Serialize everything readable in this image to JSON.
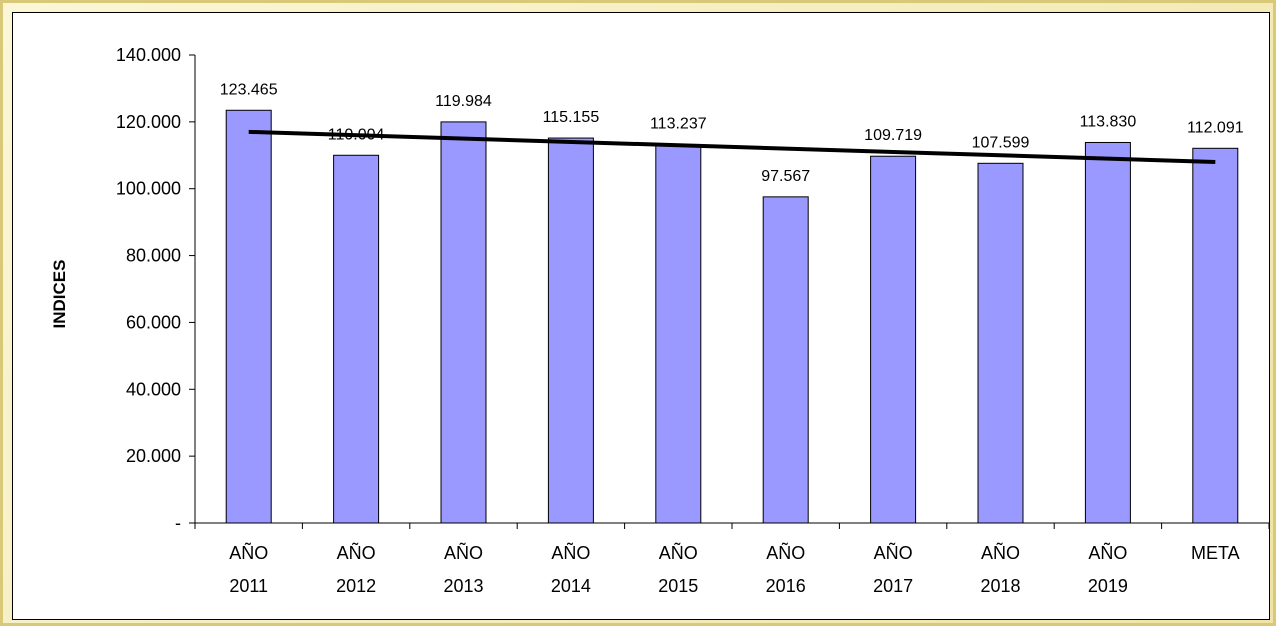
{
  "chart_data": {
    "type": "bar",
    "ylabel": "INDICES",
    "ylim": [
      0,
      140000
    ],
    "y_ticks": [
      {
        "value": 0,
        "label": "-"
      },
      {
        "value": 20000,
        "label": "20.000"
      },
      {
        "value": 40000,
        "label": "40.000"
      },
      {
        "value": 60000,
        "label": "60.000"
      },
      {
        "value": 80000,
        "label": "80.000"
      },
      {
        "value": 100000,
        "label": "100.000"
      },
      {
        "value": 120000,
        "label": "120.000"
      },
      {
        "value": 140000,
        "label": "140.000"
      }
    ],
    "categories": [
      [
        "AÑO",
        "2011"
      ],
      [
        "AÑO",
        "2012"
      ],
      [
        "AÑO",
        "2013"
      ],
      [
        "AÑO",
        "2014"
      ],
      [
        "AÑO",
        "2015"
      ],
      [
        "AÑO",
        "2016"
      ],
      [
        "AÑO",
        "2017"
      ],
      [
        "AÑO",
        "2018"
      ],
      [
        "AÑO",
        "2019"
      ],
      [
        "META"
      ]
    ],
    "values": [
      123465,
      110004,
      119984,
      115155,
      113237,
      97567,
      109719,
      107599,
      113830,
      112091
    ],
    "data_labels": [
      "123.465",
      "110.004",
      "119.984",
      "115.155",
      "113.237",
      "97.567",
      "109.719",
      "107.599",
      "113.830",
      "112.091"
    ],
    "trendline": {
      "type": "linear",
      "start_value": 117000,
      "end_value": 108000
    },
    "colors": {
      "bar_fill": "#9999ff",
      "bar_stroke": "#000000",
      "trendline": "#000000"
    },
    "grid": false,
    "legend": "none"
  }
}
